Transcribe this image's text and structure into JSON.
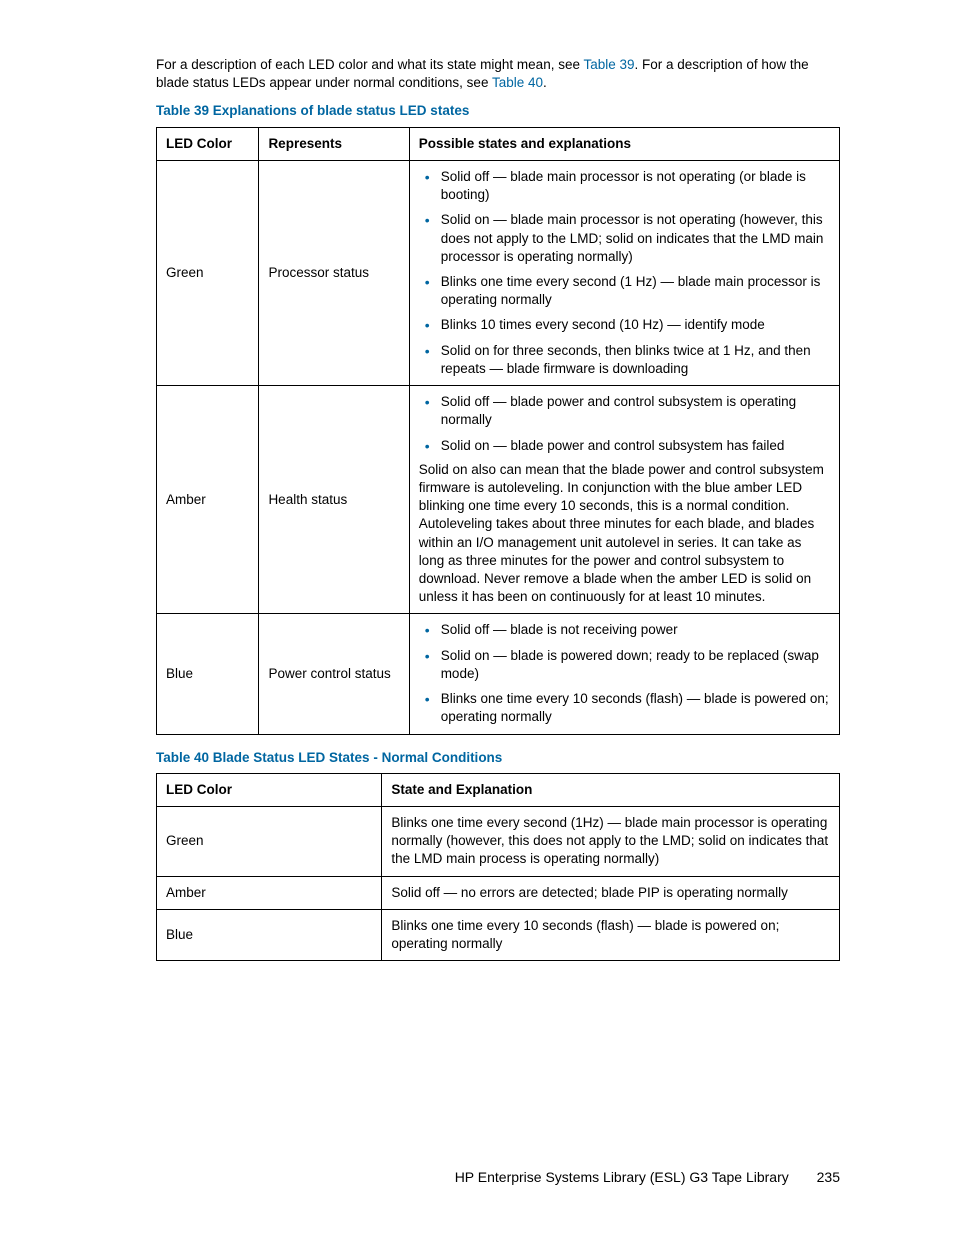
{
  "intro": {
    "text_a": "For a description of each LED color and what its state might mean, see ",
    "link_a": "Table 39",
    "text_b": ". For a description of how the blade status LEDs appear under normal conditions, see ",
    "link_b": "Table 40",
    "text_c": "."
  },
  "table39": {
    "title": "Table 39 Explanations of blade status LED states",
    "headers": {
      "col1": "LED Color",
      "col2": "Represents",
      "col3": "Possible states and explanations"
    },
    "rows": {
      "r1": {
        "c1": "Green",
        "c2": "Processor status",
        "bullets": {
          "b1": "Solid off — blade main processor is not operating (or blade is booting)",
          "b2": "Solid on — blade main processor is not operating (however, this does not apply to the LMD; solid on indicates that the LMD main processor is operating normally)",
          "b3": "Blinks one time every second (1 Hz) — blade main processor is operating normally",
          "b4": "Blinks 10 times every second (10 Hz) — identify mode",
          "b5": "Solid on for three seconds, then blinks twice at 1 Hz, and then repeats — blade firmware is downloading"
        }
      },
      "r2": {
        "c1": "Amber",
        "c2": "Health status",
        "bullets": {
          "b1": "Solid off — blade power and control subsystem is operating normally",
          "b2": "Solid on — blade power and control subsystem has failed"
        },
        "para": "Solid on also can mean that the blade power and control subsystem firmware is autoleveling. In conjunction with the blue amber LED blinking one time every 10 seconds, this is a normal condition. Autoleveling takes about three minutes for each blade, and blades within an I/O management unit autolevel in series. It can take as long as three minutes for the power and control subsystem to download. Never remove a blade when the amber LED is solid on unless it has been on continuously for at least 10 minutes."
      },
      "r3": {
        "c1": "Blue",
        "c2": "Power control status",
        "bullets": {
          "b1": "Solid off — blade is not receiving power",
          "b2": "Solid on — blade is powered down; ready to be replaced (swap mode)",
          "b3": "Blinks one time every 10 seconds (flash) — blade is powered on; operating normally"
        }
      }
    },
    "col_widths": {
      "c1": "15%",
      "c2": "22%",
      "c3": "63%"
    }
  },
  "table40": {
    "title": "Table 40 Blade Status LED States - Normal Conditions",
    "headers": {
      "col1": "LED Color",
      "col2": "State and Explanation"
    },
    "rows": {
      "r1": {
        "c1": "Green",
        "c2": "Blinks one time every second (1Hz) — blade main processor is operating normally (however, this does not apply to the LMD; solid on indicates that the LMD main process is operating normally)"
      },
      "r2": {
        "c1": "Amber",
        "c2": "Solid off — no errors are detected; blade PIP is operating normally"
      },
      "r3": {
        "c1": "Blue",
        "c2": "Blinks one time every 10 seconds (flash) — blade is powered on; operating normally"
      }
    },
    "col_widths": {
      "c1": "33%",
      "c2": "67%"
    }
  },
  "footer": {
    "doc_title": "HP Enterprise Systems Library (ESL) G3 Tape Library",
    "page_number": "235"
  },
  "colors": {
    "link": "#0066a1",
    "text": "#000000",
    "border": "#000000",
    "background": "#ffffff"
  }
}
